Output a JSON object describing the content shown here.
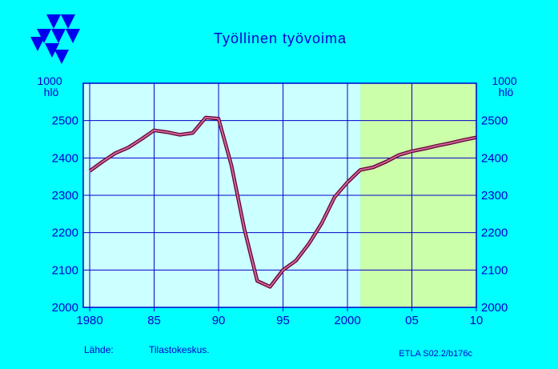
{
  "chart_data": {
    "type": "line",
    "title": "Työllinen työvoima",
    "unit_left": "1000\nhlö",
    "unit_right": "1000\nhlö",
    "xlim": [
      1979.5,
      2010
    ],
    "ylim": [
      2000,
      2600
    ],
    "x_ticks": [
      {
        "value": 1980,
        "label": "1980"
      },
      {
        "value": 1985,
        "label": "85"
      },
      {
        "value": 1990,
        "label": "90"
      },
      {
        "value": 1995,
        "label": "95"
      },
      {
        "value": 2000,
        "label": "2000"
      },
      {
        "value": 2005,
        "label": "05"
      },
      {
        "value": 2010,
        "label": "10"
      }
    ],
    "y_ticks": [
      2000,
      2100,
      2200,
      2300,
      2400,
      2500
    ],
    "y_tick_labels": [
      "2000",
      "2100",
      "2200",
      "2300",
      "2400",
      "2500"
    ],
    "forecast_start": 2001,
    "grid": true,
    "series": [
      {
        "x": [
          1980,
          1981,
          1982,
          1983,
          1984,
          1985,
          1986,
          1987,
          1988,
          1989,
          1990,
          1991,
          1992,
          1993,
          1994,
          1995,
          1996,
          1997,
          1998,
          1999,
          2000,
          2001,
          2002,
          2003,
          2004,
          2005,
          2006,
          2007,
          2008,
          2009,
          2010
        ],
        "values": [
          2365,
          2390,
          2413,
          2428,
          2450,
          2474,
          2469,
          2462,
          2467,
          2508,
          2505,
          2380,
          2210,
          2071,
          2055,
          2100,
          2125,
          2170,
          2225,
          2295,
          2335,
          2368,
          2375,
          2390,
          2408,
          2418,
          2425,
          2433,
          2440,
          2448,
          2455
        ]
      }
    ]
  },
  "source_label": "Lähde:",
  "source_value": "Tilastokeskus.",
  "reference": "ETLA S02.2/b176c",
  "colors": {
    "background": "#00ffff",
    "plot_area": "#ccffff",
    "forecast_area": "#ccffaa",
    "axis": "#0000cc",
    "line": "#cc6699"
  },
  "logo_icon": "etla-triangles-logo-icon"
}
